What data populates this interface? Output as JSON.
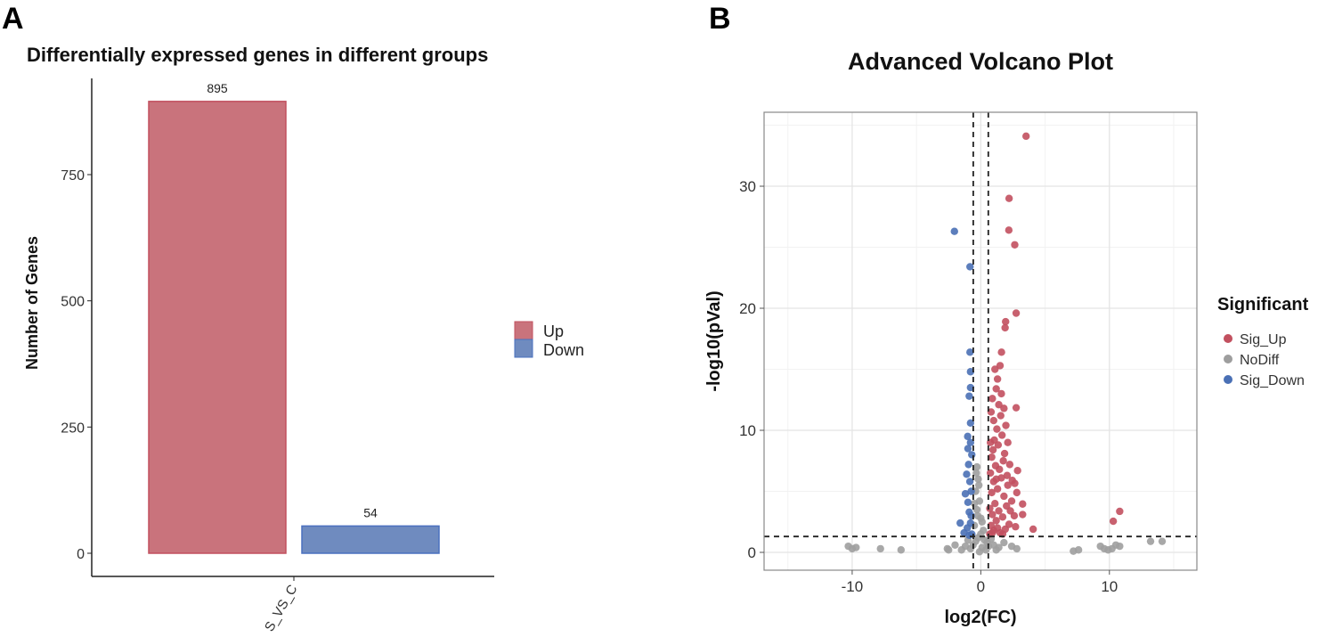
{
  "panel_labels": {
    "a": "A",
    "b": "B"
  },
  "chart_data": [
    {
      "type": "bar",
      "title": "Differentially expressed genes in different groups",
      "xlabel": "",
      "ylabel": "Number of Genes",
      "categories": [
        "S_VS_C"
      ],
      "series": [
        {
          "name": "Up",
          "values": [
            895
          ],
          "color": "#c9737c",
          "border": "#c2505f"
        },
        {
          "name": "Down",
          "values": [
            54
          ],
          "color": "#6f8bbf",
          "border": "#4a70bf"
        }
      ],
      "data_labels": [
        "895",
        "54"
      ],
      "yticks": [
        0,
        250,
        500,
        750
      ],
      "ytick_labels": [
        "0",
        "250",
        "500",
        "750"
      ],
      "ylim": [
        -45,
        940
      ],
      "legend": {
        "position": "right",
        "entries": [
          "Up",
          "Down"
        ]
      },
      "grid": false
    },
    {
      "type": "scatter",
      "title": "Advanced Volcano Plot",
      "xlabel": "log2(FC)",
      "ylabel": "-log10(pVal)",
      "xlim": [
        -16.85,
        16.8
      ],
      "ylim": [
        -1.46,
        36.06
      ],
      "xticks": [
        -10,
        0,
        10
      ],
      "xtick_labels": [
        "-10",
        "0",
        "10"
      ],
      "yticks": [
        0,
        10,
        20,
        30
      ],
      "ytick_labels": [
        "0",
        "10",
        "20",
        "30"
      ],
      "thresholds": {
        "log2fc": [
          -0.585,
          0.585
        ],
        "neg_log10_p": 1.3
      },
      "grid": true,
      "legend": {
        "position": "right",
        "title": "Significant",
        "entries": [
          "Sig_Up",
          "NoDiff",
          "Sig_Down"
        ]
      },
      "series": [
        {
          "name": "Sig_Up",
          "color": "#c2505f",
          "points": [
            [
              3.52,
              34.1
            ],
            [
              2.2,
              29.0
            ],
            [
              2.18,
              26.4
            ],
            [
              2.64,
              25.2
            ],
            [
              2.75,
              19.6
            ],
            [
              1.93,
              18.9
            ],
            [
              1.89,
              18.4
            ],
            [
              1.61,
              16.4
            ],
            [
              2.75,
              11.85
            ],
            [
              2.86,
              6.7
            ],
            [
              2.64,
              5.65
            ],
            [
              3.25,
              3.96
            ],
            [
              3.25,
              3.1
            ],
            [
              4.07,
              1.9
            ],
            [
              10.8,
              3.36
            ],
            [
              10.3,
              2.55
            ],
            [
              0.7,
              1.5
            ],
            [
              0.8,
              2.2
            ],
            [
              0.9,
              3.1
            ],
            [
              1.0,
              1.8
            ],
            [
              1.1,
              4.0
            ],
            [
              1.2,
              2.6
            ],
            [
              1.3,
              5.2
            ],
            [
              1.4,
              3.4
            ],
            [
              1.5,
              1.6
            ],
            [
              1.6,
              6.1
            ],
            [
              1.7,
              2.9
            ],
            [
              1.8,
              4.6
            ],
            [
              1.9,
              1.9
            ],
            [
              2.0,
              3.8
            ],
            [
              2.1,
              5.5
            ],
            [
              2.2,
              2.3
            ],
            [
              2.4,
              4.2
            ],
            [
              2.6,
              3.0
            ],
            [
              0.75,
              6.5
            ],
            [
              0.85,
              7.8
            ],
            [
              0.95,
              8.4
            ],
            [
              1.05,
              9.2
            ],
            [
              1.15,
              7.1
            ],
            [
              1.25,
              10.1
            ],
            [
              1.35,
              8.8
            ],
            [
              1.45,
              6.8
            ],
            [
              1.55,
              11.2
            ],
            [
              1.65,
              9.6
            ],
            [
              1.75,
              7.5
            ],
            [
              1.85,
              8.1
            ],
            [
              1.95,
              10.4
            ],
            [
              2.05,
              6.3
            ],
            [
              2.25,
              7.2
            ],
            [
              2.45,
              5.9
            ],
            [
              0.8,
              11.5
            ],
            [
              0.9,
              12.6
            ],
            [
              1.0,
              10.8
            ],
            [
              1.2,
              13.4
            ],
            [
              1.4,
              12.1
            ],
            [
              1.6,
              13.0
            ],
            [
              1.1,
              15.0
            ],
            [
              1.3,
              14.2
            ],
            [
              1.5,
              15.3
            ],
            [
              0.85,
              4.9
            ],
            [
              1.0,
              5.8
            ],
            [
              1.2,
              6.0
            ],
            [
              0.7,
              3.6
            ],
            [
              0.75,
              9.0
            ],
            [
              2.3,
              3.4
            ],
            [
              2.7,
              2.1
            ],
            [
              2.8,
              4.9
            ],
            [
              2.1,
              9.0
            ],
            [
              1.8,
              11.8
            ],
            [
              0.9,
              1.6
            ],
            [
              1.3,
              2.0
            ],
            [
              1.7,
              1.5
            ]
          ]
        },
        {
          "name": "NoDiff",
          "color": "#9e9e9e",
          "points": [
            [
              -0.3,
              7.0
            ],
            [
              -0.2,
              6.0
            ],
            [
              -0.4,
              5.0
            ],
            [
              -0.1,
              4.2
            ],
            [
              -0.3,
              3.5
            ],
            [
              0.0,
              2.8
            ],
            [
              -0.5,
              2.2
            ],
            [
              0.2,
              1.8
            ],
            [
              -0.2,
              1.2
            ],
            [
              0.3,
              1.0
            ],
            [
              0.5,
              0.8
            ],
            [
              -0.6,
              0.6
            ],
            [
              0.1,
              0.4
            ],
            [
              0.4,
              0.2
            ],
            [
              -0.1,
              0.05
            ],
            [
              0.6,
              0.5
            ],
            [
              -0.8,
              0.3
            ],
            [
              -1.2,
              0.5
            ],
            [
              -1.5,
              0.2
            ],
            [
              1.0,
              0.6
            ],
            [
              1.4,
              0.4
            ],
            [
              1.8,
              0.8
            ],
            [
              2.4,
              0.5
            ],
            [
              2.8,
              0.3
            ],
            [
              -2.0,
              0.6
            ],
            [
              -2.5,
              0.2
            ],
            [
              -0.5,
              4.0
            ],
            [
              -0.15,
              5.5
            ],
            [
              0.1,
              2.5
            ],
            [
              -0.4,
              0.9
            ],
            [
              0.8,
              1.1
            ],
            [
              -1.0,
              1.0
            ],
            [
              1.2,
              0.2
            ],
            [
              -0.35,
              6.5
            ],
            [
              -0.25,
              3.0
            ],
            [
              0.0,
              1.5
            ],
            [
              -10.3,
              0.5
            ],
            [
              -10.0,
              0.3
            ],
            [
              -9.7,
              0.4
            ],
            [
              -7.8,
              0.3
            ],
            [
              -6.2,
              0.2
            ],
            [
              -2.6,
              0.3
            ],
            [
              7.2,
              0.1
            ],
            [
              7.6,
              0.2
            ],
            [
              9.3,
              0.5
            ],
            [
              9.6,
              0.3
            ],
            [
              9.9,
              0.2
            ],
            [
              10.2,
              0.3
            ],
            [
              10.5,
              0.6
            ],
            [
              10.8,
              0.5
            ],
            [
              13.2,
              0.9
            ],
            [
              14.1,
              0.9
            ]
          ]
        },
        {
          "name": "Sig_Down",
          "color": "#4a70b5",
          "points": [
            [
              -2.05,
              26.3
            ],
            [
              -0.84,
              23.4
            ],
            [
              -0.84,
              16.4
            ],
            [
              -0.8,
              14.8
            ],
            [
              -0.8,
              13.5
            ],
            [
              -0.9,
              12.8
            ],
            [
              -0.8,
              10.6
            ],
            [
              -1.02,
              9.5
            ],
            [
              -1.6,
              2.4
            ],
            [
              -0.7,
              1.5
            ],
            [
              -0.8,
              2.4
            ],
            [
              -0.9,
              3.3
            ],
            [
              -1.0,
              4.1
            ],
            [
              -0.75,
              5.0
            ],
            [
              -0.85,
              5.8
            ],
            [
              -1.1,
              6.4
            ],
            [
              -0.95,
              7.2
            ],
            [
              -0.7,
              8.0
            ],
            [
              -1.2,
              4.8
            ],
            [
              -1.05,
              2.0
            ],
            [
              -0.8,
              9.0
            ],
            [
              -1.3,
              1.6
            ],
            [
              -0.9,
              1.4
            ],
            [
              -1.0,
              8.5
            ],
            [
              -0.75,
              3.0
            ]
          ]
        }
      ]
    }
  ]
}
